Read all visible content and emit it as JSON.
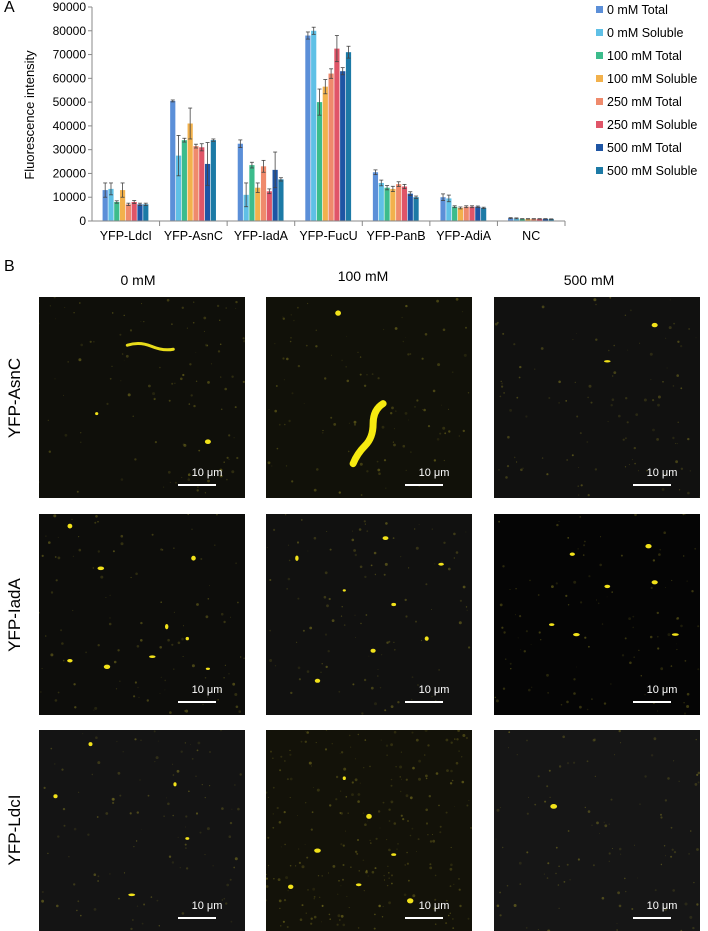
{
  "panel_a_label": "A",
  "panel_b_label": "B",
  "chart_data": {
    "type": "bar",
    "ylabel": "Fluorescence intensity",
    "xlabel": "",
    "ylim": [
      0,
      90000
    ],
    "yticks": [
      0,
      10000,
      20000,
      30000,
      40000,
      50000,
      60000,
      70000,
      80000,
      90000
    ],
    "grid": false,
    "legend_position": "right",
    "categories": [
      "YFP-LdcI",
      "YFP-AsnC",
      "YFP-IadA",
      "YFP-FucU",
      "YFP-PanB",
      "YFP-AdiA",
      "NC"
    ],
    "series": [
      {
        "name": "0 mM Total",
        "color": "#5b8fd8",
        "values": [
          13000,
          50500,
          32500,
          78000,
          20500,
          10000,
          1200
        ],
        "errors": [
          3000,
          400,
          1600,
          1500,
          1000,
          1400,
          200
        ]
      },
      {
        "name": "0 mM Soluble",
        "color": "#5fc0e6",
        "values": [
          13500,
          27500,
          11000,
          80000,
          16000,
          9500,
          1100
        ],
        "errors": [
          2500,
          8500,
          5000,
          1500,
          1200,
          1400,
          200
        ]
      },
      {
        "name": "100 mM Total",
        "color": "#3cbc8c",
        "values": [
          8000,
          34000,
          23500,
          50000,
          14000,
          6000,
          900
        ],
        "errors": [
          500,
          800,
          1200,
          5500,
          900,
          400,
          100
        ]
      },
      {
        "name": "100 mM Soluble",
        "color": "#f2b14c",
        "values": [
          13000,
          41000,
          14000,
          56500,
          13500,
          5500,
          900
        ],
        "errors": [
          3000,
          6500,
          2000,
          3000,
          1100,
          400,
          100
        ]
      },
      {
        "name": "250 mM Total",
        "color": "#ef8a6c",
        "values": [
          7000,
          31500,
          23000,
          62000,
          15500,
          6000,
          900
        ],
        "errors": [
          500,
          800,
          2500,
          2000,
          1000,
          400,
          100
        ]
      },
      {
        "name": "250 mM Soluble",
        "color": "#e05568",
        "values": [
          8000,
          31000,
          12500,
          72500,
          14500,
          6000,
          900
        ],
        "errors": [
          600,
          1500,
          1000,
          5500,
          900,
          400,
          100
        ]
      },
      {
        "name": "500 mM Total",
        "color": "#1e55a4",
        "values": [
          7000,
          24000,
          21500,
          63000,
          11500,
          6000,
          900
        ],
        "errors": [
          500,
          9000,
          7500,
          1500,
          800,
          300,
          100
        ]
      },
      {
        "name": "500 mM Soluble",
        "color": "#1c7aa6",
        "values": [
          7000,
          34000,
          17500,
          71000,
          10000,
          5500,
          800
        ],
        "errors": [
          500,
          500,
          700,
          2500,
          500,
          300,
          100
        ]
      }
    ]
  },
  "panel_b": {
    "columns": [
      "0 mM",
      "100 mM",
      "500 mM"
    ],
    "rows": [
      "YFP-AsnC",
      "YFP-IadA",
      "YFP-LdcI"
    ],
    "scale_bar_label": "10 μm"
  }
}
